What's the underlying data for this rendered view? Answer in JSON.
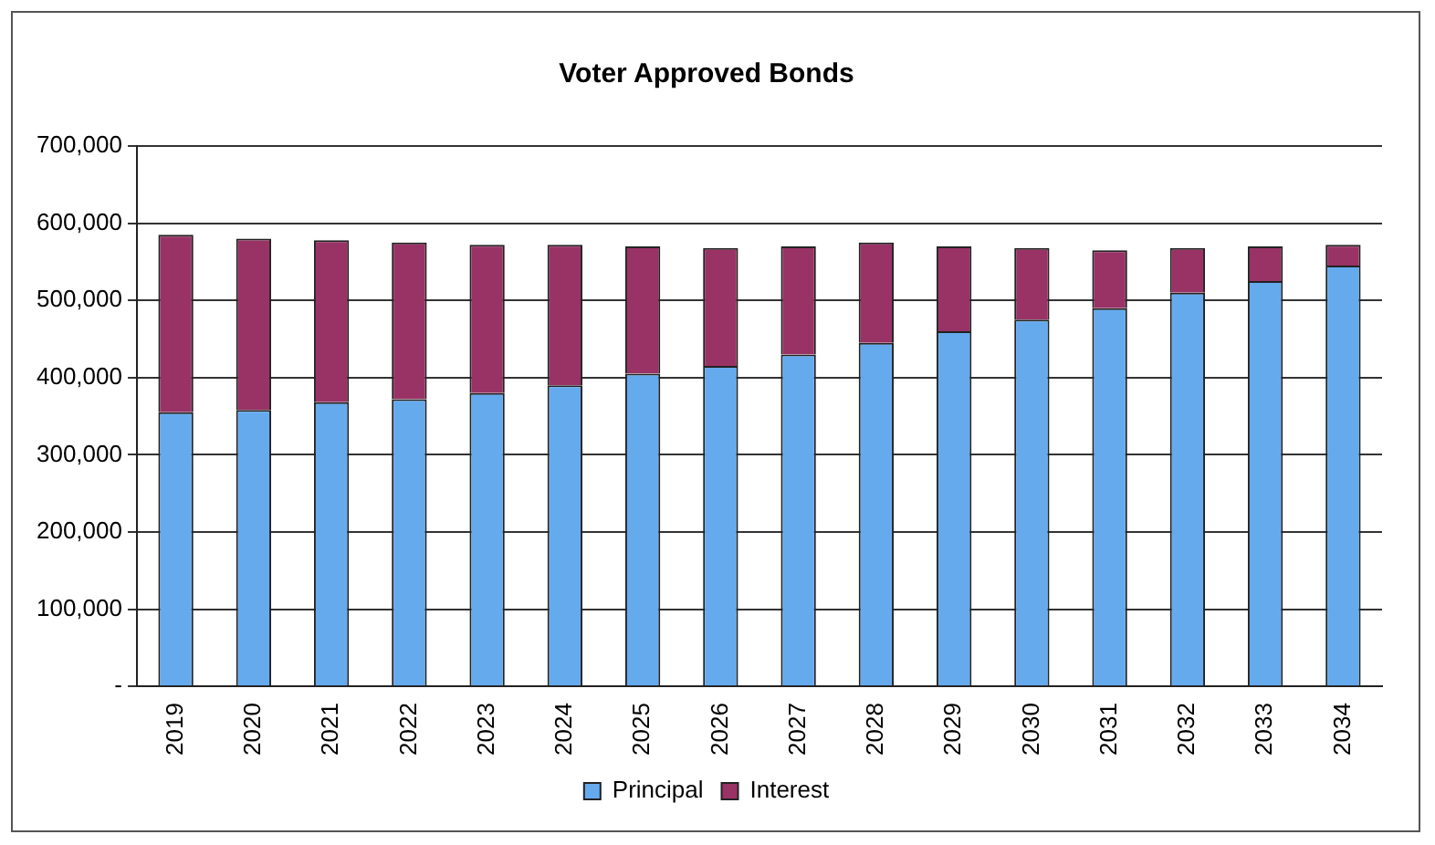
{
  "chart_data": {
    "type": "bar",
    "title": "Voter Approved Bonds",
    "stacked": true,
    "categories": [
      "2019",
      "2020",
      "2021",
      "2022",
      "2023",
      "2024",
      "2025",
      "2026",
      "2027",
      "2028",
      "2029",
      "2030",
      "2031",
      "2032",
      "2033",
      "2034"
    ],
    "series": [
      {
        "name": "Principal",
        "color": "#66aaee",
        "values": [
          355000,
          358000,
          368000,
          372000,
          380000,
          390000,
          405000,
          415000,
          430000,
          445000,
          460000,
          475000,
          490000,
          510000,
          525000,
          545000
        ]
      },
      {
        "name": "Interest",
        "color": "#993366",
        "values": [
          230000,
          222000,
          210000,
          203000,
          192000,
          182000,
          165000,
          153000,
          140000,
          130000,
          110000,
          93000,
          75000,
          58000,
          45000,
          27000
        ]
      }
    ],
    "ylim": [
      0,
      700000
    ],
    "yticks": [
      {
        "value": 0,
        "label": "-"
      },
      {
        "value": 100000,
        "label": "100,000"
      },
      {
        "value": 200000,
        "label": "200,000"
      },
      {
        "value": 300000,
        "label": "300,000"
      },
      {
        "value": 400000,
        "label": "400,000"
      },
      {
        "value": 500000,
        "label": "500,000"
      },
      {
        "value": 600000,
        "label": "600,000"
      },
      {
        "value": 700000,
        "label": "700,000"
      }
    ],
    "grid": "y",
    "legend": "bottom"
  }
}
